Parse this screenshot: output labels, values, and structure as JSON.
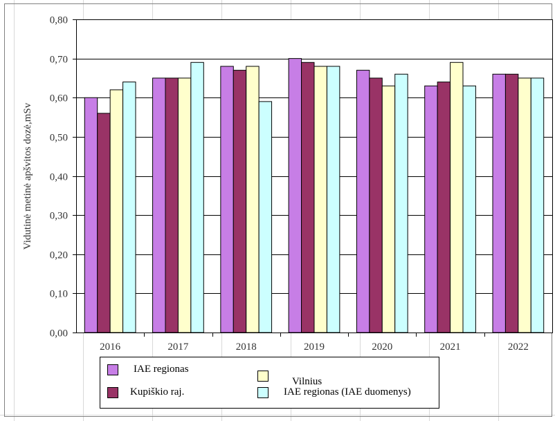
{
  "chart_data": {
    "type": "bar",
    "title": "",
    "xlabel": "",
    "ylabel": "Vidutinė metinė apšvitos dozė,mSv",
    "ylim": [
      0,
      0.8
    ],
    "yticks": [
      "0,00",
      "0,10",
      "0,20",
      "0,30",
      "0,40",
      "0,50",
      "0,60",
      "0,70",
      "0,80"
    ],
    "grid": true,
    "legend_position": "bottom",
    "categories": [
      "2016",
      "2017",
      "2018",
      "2019",
      "2020",
      "2021",
      "2022"
    ],
    "series": [
      {
        "name": "IAE regionas",
        "color": "#c77ee6",
        "values": [
          0.6,
          0.65,
          0.68,
          0.7,
          0.67,
          0.63,
          0.66
        ]
      },
      {
        "name": "Kupiškio raj.",
        "color": "#993366",
        "values": [
          0.56,
          0.65,
          0.67,
          0.69,
          0.65,
          0.64,
          0.66
        ]
      },
      {
        "name": "Vilnius",
        "color": "#ffffcc",
        "values": [
          0.62,
          0.65,
          0.68,
          0.68,
          0.63,
          0.69,
          0.65
        ]
      },
      {
        "name": "IAE regionas (IAE duomenys)",
        "color": "#ccffff",
        "values": [
          0.64,
          0.69,
          0.59,
          0.68,
          0.66,
          0.63,
          0.65
        ]
      }
    ]
  }
}
